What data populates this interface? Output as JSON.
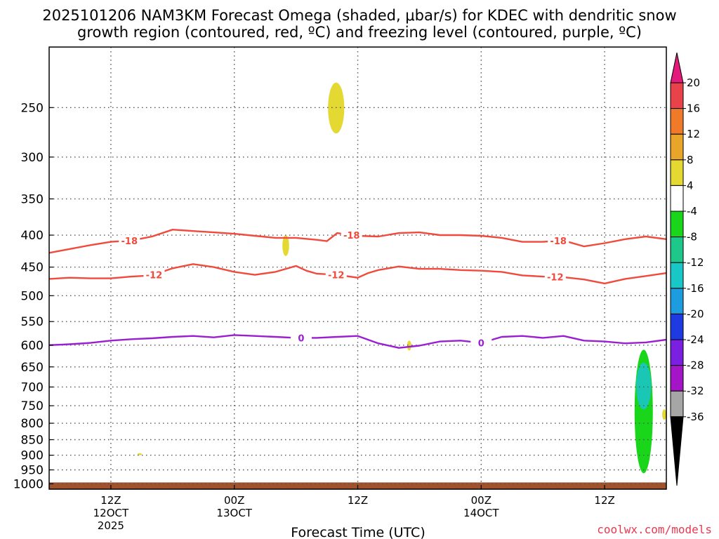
{
  "chart_data": {
    "type": "line",
    "title_line1": "2025101206 NAM3KM Forecast Omega (shaded, μbar/s) for KDEC with dendritic snow",
    "title_line2": "growth region (contoured, red, ºC) and freezing level (contoured, purple, ºC)",
    "xlabel": "Forecast Time (UTC)",
    "credit": "coolwx.com/models",
    "credit_color": "#e8384f",
    "y_axis": {
      "scale": "log",
      "reversed": true,
      "range": [
        1020,
        200
      ],
      "ticks": [
        "250",
        "300",
        "350",
        "400",
        "450",
        "500",
        "550",
        "600",
        "650",
        "700",
        "750",
        "800",
        "850",
        "900",
        "950",
        "1000"
      ]
    },
    "x_axis": {
      "range_hours": [
        6,
        66
      ],
      "ticks": [
        {
          "hour": 12,
          "line1": "12Z",
          "line2": "12OCT",
          "line3": "2025"
        },
        {
          "hour": 24,
          "line1": "00Z",
          "line2": "13OCT",
          "line3": ""
        },
        {
          "hour": 36,
          "line1": "12Z",
          "line2": "",
          "line3": ""
        },
        {
          "hour": 48,
          "line1": "00Z",
          "line2": "14OCT",
          "line3": ""
        },
        {
          "hour": 60,
          "line1": "12Z",
          "line2": "",
          "line3": ""
        }
      ]
    },
    "grid": true,
    "contours": [
      {
        "field": "temperature",
        "level": -18,
        "color": "#f04a3c",
        "labels": [
          "-18",
          "-18",
          "-18"
        ],
        "label_hours": [
          13.8,
          35.4,
          55.5
        ],
        "hours": [
          6,
          8,
          10,
          12,
          14,
          16,
          18,
          20,
          22,
          24,
          26,
          28,
          30,
          32,
          33,
          34,
          36,
          38,
          40,
          42,
          44,
          46,
          48,
          50,
          52,
          54,
          56,
          58,
          60,
          62,
          64,
          66
        ],
        "pressure": [
          427,
          421,
          415,
          410,
          408,
          402,
          392,
          394,
          396,
          398,
          401,
          404,
          404,
          407,
          409,
          397,
          401,
          402,
          397,
          396,
          400,
          400,
          401,
          404,
          410,
          410,
          408,
          417,
          412,
          406,
          402,
          406
        ]
      },
      {
        "field": "temperature",
        "level": -12,
        "color": "#f04a3c",
        "labels": [
          "-12",
          "-12",
          "-12"
        ],
        "label_hours": [
          16.2,
          33.9,
          55.2
        ],
        "hours": [
          6,
          8,
          10,
          12,
          14,
          16,
          18,
          20,
          22,
          24,
          26,
          28,
          30,
          31,
          32,
          34,
          36,
          37,
          38,
          40,
          42,
          44,
          46,
          48,
          50,
          52,
          54,
          56,
          58,
          60,
          62,
          64,
          66
        ],
        "pressure": [
          470,
          468,
          469,
          469,
          466,
          464,
          452,
          445,
          450,
          458,
          463,
          458,
          448,
          456,
          461,
          463,
          468,
          460,
          455,
          449,
          453,
          453,
          455,
          456,
          458,
          464,
          466,
          467,
          471,
          478,
          470,
          465,
          460
        ]
      },
      {
        "field": "freezing level",
        "level": 0,
        "color": "#9a1fd0",
        "labels": [
          "0",
          "0"
        ],
        "label_hours": [
          30.5,
          48.0
        ],
        "hours": [
          6,
          8,
          10,
          12,
          14,
          16,
          18,
          20,
          22,
          24,
          26,
          28,
          30,
          32,
          34,
          36,
          38,
          40,
          42,
          44,
          46,
          48,
          50,
          52,
          54,
          56,
          58,
          60,
          62,
          64,
          66
        ],
        "pressure": [
          600,
          598,
          595,
          590,
          587,
          585,
          582,
          580,
          583,
          578,
          580,
          582,
          584,
          584,
          582,
          580,
          596,
          606,
          601,
          592,
          590,
          595,
          582,
          580,
          584,
          580,
          590,
          592,
          596,
          594,
          588
        ]
      }
    ],
    "omega_regions": [
      {
        "label": "upper yellow blob",
        "color": "#e4d832",
        "hour": 33.9,
        "p_top": 228,
        "p_bottom": 275
      },
      {
        "label": "small yellow sliver",
        "color": "#e4d832",
        "hour": 29.0,
        "p_top": 400,
        "p_bottom": 432
      },
      {
        "label": "small yellow sliver",
        "color": "#e4d832",
        "hour": 41.0,
        "p_top": 590,
        "p_bottom": 612
      },
      {
        "label": "low yellow blip",
        "color": "#e4d832",
        "hour": 14.8,
        "p_top": 893,
        "p_bottom": 900
      },
      {
        "label": "green column",
        "color": "#1ad61a",
        "hour": 63.8,
        "p_top": 610,
        "p_bottom": 962
      },
      {
        "label": "inner teal band",
        "color": "#19c7b4",
        "hour": 63.8,
        "p_top": 640,
        "p_bottom": 760
      },
      {
        "label": "edge yellow blip",
        "color": "#e4d832",
        "hour": 65.8,
        "p_top": 760,
        "p_bottom": 790
      }
    ],
    "terrain": {
      "color": "#a0522d",
      "surface_pressure": 995
    },
    "colorbar": {
      "top_color": "#e31a7b",
      "bottom_color": "#000000",
      "colors": [
        "#e8434a",
        "#ee7a2a",
        "#e8a52a",
        "#e4d832",
        "#ffffff",
        "#1ad61a",
        "#1ec88a",
        "#19c7c7",
        "#1e9ce0",
        "#1d3be0",
        "#7b1fe0",
        "#a415c8",
        "#a6a6a6"
      ],
      "labels": [
        "20",
        "16",
        "12",
        "8",
        "4",
        "-4",
        "-8",
        "-12",
        "-16",
        "-20",
        "-24",
        "-28",
        "-32",
        "-36"
      ]
    }
  }
}
